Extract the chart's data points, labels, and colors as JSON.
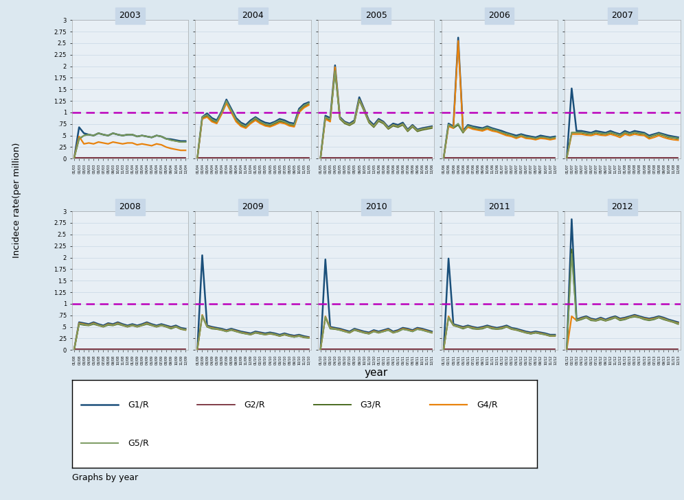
{
  "years": [
    2003,
    2004,
    2005,
    2006,
    2007,
    2008,
    2009,
    2010,
    2011,
    2012
  ],
  "n_timepoints": 24,
  "colors": {
    "G1/R": "#1a4f7a",
    "G2/R": "#6b1a28",
    "G3/R": "#4a6a20",
    "G4/R": "#e8820c",
    "G5/R": "#7a9a60"
  },
  "linewidths": {
    "G1/R": 1.8,
    "G2/R": 1.2,
    "G3/R": 1.4,
    "G4/R": 1.6,
    "G5/R": 1.4
  },
  "hline_y": 1.0,
  "hline_color": "#bb00bb",
  "ylim": [
    0,
    3.0
  ],
  "yticks": [
    0,
    0.25,
    0.5,
    0.75,
    1.0,
    1.25,
    1.5,
    1.75,
    2.0,
    2.25,
    2.5,
    2.75,
    3.0
  ],
  "ytick_labels": [
    "0",
    ".25",
    ".5",
    ".75",
    "1",
    "1.25",
    "1.5",
    "1.75",
    "2",
    "2.25",
    "2.5",
    "2.75",
    "3"
  ],
  "ylabel": "Incidece rate(per million)",
  "xlabel": "year",
  "background_color": "#dce8f0",
  "plot_bg_color": "#e8eff5",
  "grid_color": "#c8d8e4",
  "title_bg_color": "#c8d8e8",
  "series_data": {
    "2003": {
      "G1/R": [
        0.02,
        0.68,
        0.55,
        0.52,
        0.5,
        0.55,
        0.52,
        0.5,
        0.55,
        0.52,
        0.5,
        0.52,
        0.52,
        0.48,
        0.5,
        0.48,
        0.46,
        0.5,
        0.48,
        0.43,
        0.42,
        0.4,
        0.38,
        0.38
      ],
      "G2/R": [
        0.02,
        0.02,
        0.02,
        0.02,
        0.02,
        0.02,
        0.02,
        0.02,
        0.02,
        0.02,
        0.02,
        0.02,
        0.02,
        0.02,
        0.02,
        0.02,
        0.02,
        0.02,
        0.02,
        0.02,
        0.02,
        0.02,
        0.02,
        0.02
      ],
      "G3/R": [
        0.02,
        0.42,
        0.5,
        0.52,
        0.5,
        0.55,
        0.52,
        0.5,
        0.55,
        0.52,
        0.5,
        0.52,
        0.52,
        0.48,
        0.5,
        0.48,
        0.46,
        0.5,
        0.48,
        0.43,
        0.4,
        0.38,
        0.36,
        0.36
      ],
      "G4/R": [
        0.02,
        0.48,
        0.32,
        0.34,
        0.32,
        0.36,
        0.34,
        0.32,
        0.36,
        0.34,
        0.32,
        0.34,
        0.34,
        0.3,
        0.32,
        0.3,
        0.28,
        0.32,
        0.3,
        0.25,
        0.22,
        0.2,
        0.18,
        0.18
      ],
      "G5/R": [
        0.02,
        0.44,
        0.5,
        0.52,
        0.5,
        0.55,
        0.52,
        0.5,
        0.55,
        0.52,
        0.5,
        0.52,
        0.52,
        0.48,
        0.5,
        0.48,
        0.46,
        0.5,
        0.48,
        0.43,
        0.4,
        0.38,
        0.36,
        0.36
      ]
    },
    "2004": {
      "G1/R": [
        0.02,
        0.9,
        0.98,
        0.88,
        0.83,
        1.02,
        1.28,
        1.08,
        0.88,
        0.78,
        0.73,
        0.83,
        0.9,
        0.83,
        0.78,
        0.76,
        0.8,
        0.86,
        0.83,
        0.78,
        0.76,
        1.08,
        1.18,
        1.22
      ],
      "G2/R": [
        0.02,
        0.02,
        0.02,
        0.02,
        0.02,
        0.02,
        0.02,
        0.02,
        0.02,
        0.02,
        0.02,
        0.02,
        0.02,
        0.02,
        0.02,
        0.02,
        0.02,
        0.02,
        0.02,
        0.02,
        0.02,
        0.02,
        0.02,
        0.02
      ],
      "G3/R": [
        0.02,
        0.88,
        0.93,
        0.83,
        0.78,
        0.98,
        1.23,
        1.03,
        0.83,
        0.73,
        0.68,
        0.78,
        0.86,
        0.78,
        0.73,
        0.71,
        0.76,
        0.81,
        0.78,
        0.73,
        0.71,
        1.03,
        1.13,
        1.18
      ],
      "G4/R": [
        0.02,
        0.86,
        0.9,
        0.8,
        0.76,
        0.96,
        1.2,
        1.0,
        0.8,
        0.7,
        0.66,
        0.76,
        0.83,
        0.76,
        0.71,
        0.69,
        0.73,
        0.78,
        0.76,
        0.71,
        0.69,
        1.0,
        1.1,
        1.16
      ],
      "G5/R": [
        0.02,
        0.9,
        0.95,
        0.85,
        0.8,
        1.0,
        1.25,
        1.05,
        0.85,
        0.75,
        0.7,
        0.8,
        0.88,
        0.8,
        0.75,
        0.73,
        0.78,
        0.83,
        0.8,
        0.75,
        0.73,
        1.05,
        1.15,
        1.2
      ]
    },
    "2005": {
      "G1/R": [
        0.02,
        0.93,
        0.88,
        2.02,
        0.9,
        0.8,
        0.76,
        0.83,
        1.33,
        1.08,
        0.83,
        0.73,
        0.86,
        0.8,
        0.68,
        0.76,
        0.73,
        0.78,
        0.63,
        0.73,
        0.63,
        0.66,
        0.68,
        0.7
      ],
      "G2/R": [
        0.02,
        0.02,
        0.02,
        0.02,
        0.02,
        0.02,
        0.02,
        0.02,
        0.02,
        0.02,
        0.02,
        0.02,
        0.02,
        0.02,
        0.02,
        0.02,
        0.02,
        0.02,
        0.02,
        0.02,
        0.02,
        0.02,
        0.02,
        0.02
      ],
      "G3/R": [
        0.02,
        0.88,
        0.83,
        1.88,
        0.86,
        0.76,
        0.72,
        0.78,
        1.26,
        1.03,
        0.78,
        0.68,
        0.81,
        0.76,
        0.64,
        0.71,
        0.68,
        0.73,
        0.59,
        0.69,
        0.59,
        0.62,
        0.64,
        0.66
      ],
      "G4/R": [
        0.02,
        0.86,
        0.8,
        1.98,
        0.88,
        0.78,
        0.74,
        0.8,
        1.28,
        1.06,
        0.8,
        0.7,
        0.83,
        0.78,
        0.66,
        0.73,
        0.7,
        0.75,
        0.61,
        0.71,
        0.61,
        0.64,
        0.66,
        0.68
      ],
      "G5/R": [
        0.02,
        0.9,
        0.85,
        1.9,
        0.88,
        0.78,
        0.74,
        0.8,
        1.28,
        1.05,
        0.8,
        0.7,
        0.83,
        0.78,
        0.66,
        0.73,
        0.7,
        0.75,
        0.61,
        0.71,
        0.61,
        0.64,
        0.66,
        0.68
      ]
    },
    "2006": {
      "G1/R": [
        0.02,
        0.76,
        0.7,
        2.62,
        0.6,
        0.73,
        0.7,
        0.68,
        0.66,
        0.7,
        0.66,
        0.63,
        0.6,
        0.56,
        0.53,
        0.5,
        0.53,
        0.5,
        0.48,
        0.46,
        0.5,
        0.48,
        0.46,
        0.48
      ],
      "G2/R": [
        0.02,
        0.02,
        0.02,
        0.02,
        0.02,
        0.02,
        0.02,
        0.02,
        0.02,
        0.02,
        0.02,
        0.02,
        0.02,
        0.02,
        0.02,
        0.02,
        0.02,
        0.02,
        0.02,
        0.02,
        0.02,
        0.02,
        0.02,
        0.02
      ],
      "G3/R": [
        0.02,
        0.73,
        0.66,
        0.73,
        0.56,
        0.7,
        0.66,
        0.64,
        0.63,
        0.66,
        0.63,
        0.6,
        0.56,
        0.53,
        0.5,
        0.46,
        0.5,
        0.46,
        0.45,
        0.43,
        0.46,
        0.45,
        0.43,
        0.45
      ],
      "G4/R": [
        0.02,
        0.7,
        0.66,
        2.55,
        0.58,
        0.68,
        0.64,
        0.62,
        0.6,
        0.64,
        0.6,
        0.58,
        0.54,
        0.5,
        0.48,
        0.44,
        0.48,
        0.44,
        0.43,
        0.41,
        0.44,
        0.43,
        0.41,
        0.43
      ],
      "G5/R": [
        0.02,
        0.74,
        0.68,
        0.76,
        0.58,
        0.71,
        0.68,
        0.65,
        0.64,
        0.68,
        0.64,
        0.61,
        0.57,
        0.54,
        0.51,
        0.47,
        0.51,
        0.47,
        0.46,
        0.44,
        0.47,
        0.46,
        0.44,
        0.46
      ]
    },
    "2007": {
      "G1/R": [
        0.02,
        1.52,
        0.6,
        0.6,
        0.58,
        0.56,
        0.6,
        0.58,
        0.56,
        0.6,
        0.56,
        0.53,
        0.6,
        0.56,
        0.6,
        0.58,
        0.56,
        0.5,
        0.53,
        0.56,
        0.53,
        0.5,
        0.48,
        0.46
      ],
      "G2/R": [
        0.02,
        0.02,
        0.02,
        0.02,
        0.02,
        0.02,
        0.02,
        0.02,
        0.02,
        0.02,
        0.02,
        0.02,
        0.02,
        0.02,
        0.02,
        0.02,
        0.02,
        0.02,
        0.02,
        0.02,
        0.02,
        0.02,
        0.02,
        0.02
      ],
      "G3/R": [
        0.02,
        0.56,
        0.56,
        0.56,
        0.54,
        0.53,
        0.56,
        0.54,
        0.53,
        0.56,
        0.53,
        0.5,
        0.56,
        0.53,
        0.56,
        0.54,
        0.53,
        0.46,
        0.5,
        0.53,
        0.5,
        0.46,
        0.45,
        0.43
      ],
      "G4/R": [
        0.02,
        0.53,
        0.53,
        0.53,
        0.51,
        0.5,
        0.53,
        0.51,
        0.5,
        0.53,
        0.5,
        0.46,
        0.53,
        0.5,
        0.53,
        0.51,
        0.5,
        0.43,
        0.46,
        0.5,
        0.46,
        0.43,
        0.41,
        0.4
      ],
      "G5/R": [
        0.02,
        0.57,
        0.57,
        0.57,
        0.55,
        0.54,
        0.57,
        0.55,
        0.54,
        0.57,
        0.54,
        0.51,
        0.57,
        0.54,
        0.57,
        0.55,
        0.54,
        0.47,
        0.51,
        0.54,
        0.51,
        0.47,
        0.46,
        0.44
      ]
    },
    "2008": {
      "G1/R": [
        0.02,
        0.6,
        0.58,
        0.56,
        0.6,
        0.56,
        0.53,
        0.58,
        0.56,
        0.6,
        0.56,
        0.53,
        0.56,
        0.53,
        0.56,
        0.6,
        0.56,
        0.53,
        0.56,
        0.53,
        0.5,
        0.53,
        0.48,
        0.46
      ],
      "G2/R": [
        0.02,
        0.02,
        0.02,
        0.02,
        0.02,
        0.02,
        0.02,
        0.02,
        0.02,
        0.02,
        0.02,
        0.02,
        0.02,
        0.02,
        0.02,
        0.02,
        0.02,
        0.02,
        0.02,
        0.02,
        0.02,
        0.02,
        0.02,
        0.02
      ],
      "G3/R": [
        0.02,
        0.56,
        0.54,
        0.53,
        0.56,
        0.53,
        0.5,
        0.54,
        0.53,
        0.56,
        0.53,
        0.5,
        0.53,
        0.5,
        0.53,
        0.56,
        0.53,
        0.5,
        0.53,
        0.5,
        0.46,
        0.5,
        0.45,
        0.43
      ],
      "G4/R": [
        0.02,
        0.58,
        0.56,
        0.54,
        0.58,
        0.54,
        0.51,
        0.56,
        0.54,
        0.58,
        0.54,
        0.51,
        0.54,
        0.51,
        0.54,
        0.58,
        0.54,
        0.51,
        0.54,
        0.51,
        0.48,
        0.51,
        0.46,
        0.44
      ],
      "G5/R": [
        0.02,
        0.57,
        0.55,
        0.54,
        0.57,
        0.54,
        0.51,
        0.55,
        0.54,
        0.57,
        0.54,
        0.51,
        0.54,
        0.51,
        0.54,
        0.57,
        0.54,
        0.51,
        0.54,
        0.51,
        0.47,
        0.51,
        0.46,
        0.44
      ]
    },
    "2009": {
      "G1/R": [
        0.02,
        2.05,
        0.53,
        0.5,
        0.48,
        0.46,
        0.43,
        0.46,
        0.43,
        0.4,
        0.38,
        0.36,
        0.4,
        0.38,
        0.36,
        0.38,
        0.36,
        0.33,
        0.36,
        0.33,
        0.31,
        0.33,
        0.3,
        0.28
      ],
      "G2/R": [
        0.02,
        0.02,
        0.02,
        0.02,
        0.02,
        0.02,
        0.02,
        0.02,
        0.02,
        0.02,
        0.02,
        0.02,
        0.02,
        0.02,
        0.02,
        0.02,
        0.02,
        0.02,
        0.02,
        0.02,
        0.02,
        0.02,
        0.02,
        0.02
      ],
      "G3/R": [
        0.02,
        0.73,
        0.5,
        0.46,
        0.45,
        0.43,
        0.4,
        0.43,
        0.4,
        0.37,
        0.35,
        0.33,
        0.37,
        0.35,
        0.33,
        0.35,
        0.33,
        0.3,
        0.33,
        0.3,
        0.28,
        0.3,
        0.27,
        0.26
      ],
      "G4/R": [
        0.02,
        0.76,
        0.51,
        0.48,
        0.46,
        0.44,
        0.41,
        0.44,
        0.41,
        0.38,
        0.36,
        0.34,
        0.38,
        0.36,
        0.34,
        0.36,
        0.34,
        0.31,
        0.34,
        0.31,
        0.29,
        0.31,
        0.28,
        0.27
      ],
      "G5/R": [
        0.02,
        0.75,
        0.51,
        0.47,
        0.46,
        0.44,
        0.4,
        0.44,
        0.4,
        0.38,
        0.35,
        0.34,
        0.38,
        0.35,
        0.34,
        0.36,
        0.34,
        0.31,
        0.34,
        0.31,
        0.28,
        0.31,
        0.28,
        0.26
      ]
    },
    "2010": {
      "G1/R": [
        0.02,
        1.96,
        0.5,
        0.48,
        0.46,
        0.43,
        0.4,
        0.46,
        0.43,
        0.4,
        0.38,
        0.43,
        0.4,
        0.43,
        0.46,
        0.4,
        0.43,
        0.48,
        0.46,
        0.43,
        0.48,
        0.46,
        0.43,
        0.4
      ],
      "G2/R": [
        0.02,
        0.02,
        0.02,
        0.02,
        0.02,
        0.02,
        0.02,
        0.02,
        0.02,
        0.02,
        0.02,
        0.02,
        0.02,
        0.02,
        0.02,
        0.02,
        0.02,
        0.02,
        0.02,
        0.02,
        0.02,
        0.02,
        0.02,
        0.02
      ],
      "G3/R": [
        0.02,
        0.7,
        0.46,
        0.45,
        0.43,
        0.4,
        0.37,
        0.43,
        0.4,
        0.37,
        0.35,
        0.4,
        0.37,
        0.4,
        0.43,
        0.37,
        0.4,
        0.45,
        0.43,
        0.4,
        0.45,
        0.43,
        0.4,
        0.37
      ],
      "G4/R": [
        0.02,
        0.73,
        0.48,
        0.46,
        0.44,
        0.41,
        0.38,
        0.44,
        0.41,
        0.38,
        0.36,
        0.41,
        0.38,
        0.41,
        0.44,
        0.38,
        0.41,
        0.46,
        0.44,
        0.41,
        0.46,
        0.44,
        0.41,
        0.38
      ],
      "G5/R": [
        0.02,
        0.72,
        0.47,
        0.46,
        0.43,
        0.4,
        0.38,
        0.44,
        0.4,
        0.38,
        0.35,
        0.4,
        0.38,
        0.4,
        0.43,
        0.38,
        0.4,
        0.45,
        0.43,
        0.4,
        0.45,
        0.43,
        0.4,
        0.38
      ]
    },
    "2011": {
      "G1/R": [
        0.02,
        1.98,
        0.56,
        0.53,
        0.5,
        0.53,
        0.5,
        0.48,
        0.5,
        0.53,
        0.5,
        0.48,
        0.5,
        0.53,
        0.48,
        0.46,
        0.43,
        0.4,
        0.38,
        0.4,
        0.38,
        0.36,
        0.33,
        0.33
      ],
      "G2/R": [
        0.02,
        0.02,
        0.02,
        0.02,
        0.02,
        0.02,
        0.02,
        0.02,
        0.02,
        0.02,
        0.02,
        0.02,
        0.02,
        0.02,
        0.02,
        0.02,
        0.02,
        0.02,
        0.02,
        0.02,
        0.02,
        0.02,
        0.02,
        0.02
      ],
      "G3/R": [
        0.02,
        0.7,
        0.53,
        0.5,
        0.46,
        0.5,
        0.46,
        0.45,
        0.46,
        0.5,
        0.46,
        0.45,
        0.46,
        0.5,
        0.45,
        0.43,
        0.4,
        0.37,
        0.35,
        0.37,
        0.35,
        0.33,
        0.3,
        0.3
      ],
      "G4/R": [
        0.02,
        0.73,
        0.54,
        0.51,
        0.48,
        0.51,
        0.48,
        0.46,
        0.48,
        0.51,
        0.48,
        0.46,
        0.48,
        0.51,
        0.46,
        0.44,
        0.41,
        0.38,
        0.36,
        0.38,
        0.36,
        0.34,
        0.31,
        0.31
      ],
      "G5/R": [
        0.02,
        0.71,
        0.54,
        0.51,
        0.47,
        0.51,
        0.47,
        0.46,
        0.47,
        0.51,
        0.47,
        0.46,
        0.47,
        0.51,
        0.46,
        0.44,
        0.4,
        0.38,
        0.35,
        0.38,
        0.35,
        0.34,
        0.31,
        0.31
      ]
    },
    "2012": {
      "G1/R": [
        0.02,
        2.83,
        0.66,
        0.7,
        0.73,
        0.68,
        0.66,
        0.7,
        0.66,
        0.7,
        0.73,
        0.68,
        0.7,
        0.73,
        0.76,
        0.73,
        0.7,
        0.68,
        0.7,
        0.73,
        0.7,
        0.66,
        0.63,
        0.6
      ],
      "G2/R": [
        0.02,
        0.02,
        0.02,
        0.02,
        0.02,
        0.02,
        0.02,
        0.02,
        0.02,
        0.02,
        0.02,
        0.02,
        0.02,
        0.02,
        0.02,
        0.02,
        0.02,
        0.02,
        0.02,
        0.02,
        0.02,
        0.02,
        0.02,
        0.02
      ],
      "G3/R": [
        0.02,
        2.18,
        0.63,
        0.66,
        0.7,
        0.64,
        0.63,
        0.66,
        0.63,
        0.66,
        0.7,
        0.64,
        0.66,
        0.7,
        0.72,
        0.7,
        0.66,
        0.64,
        0.66,
        0.7,
        0.66,
        0.63,
        0.6,
        0.56
      ],
      "G4/R": [
        0.02,
        0.73,
        0.64,
        0.68,
        0.71,
        0.66,
        0.64,
        0.68,
        0.64,
        0.68,
        0.71,
        0.66,
        0.68,
        0.71,
        0.74,
        0.71,
        0.68,
        0.66,
        0.68,
        0.71,
        0.68,
        0.64,
        0.61,
        0.58
      ],
      "G5/R": [
        0.02,
        2.08,
        0.64,
        0.67,
        0.71,
        0.65,
        0.64,
        0.67,
        0.64,
        0.67,
        0.71,
        0.65,
        0.67,
        0.71,
        0.73,
        0.71,
        0.67,
        0.65,
        0.67,
        0.71,
        0.67,
        0.64,
        0.61,
        0.57
      ]
    }
  }
}
